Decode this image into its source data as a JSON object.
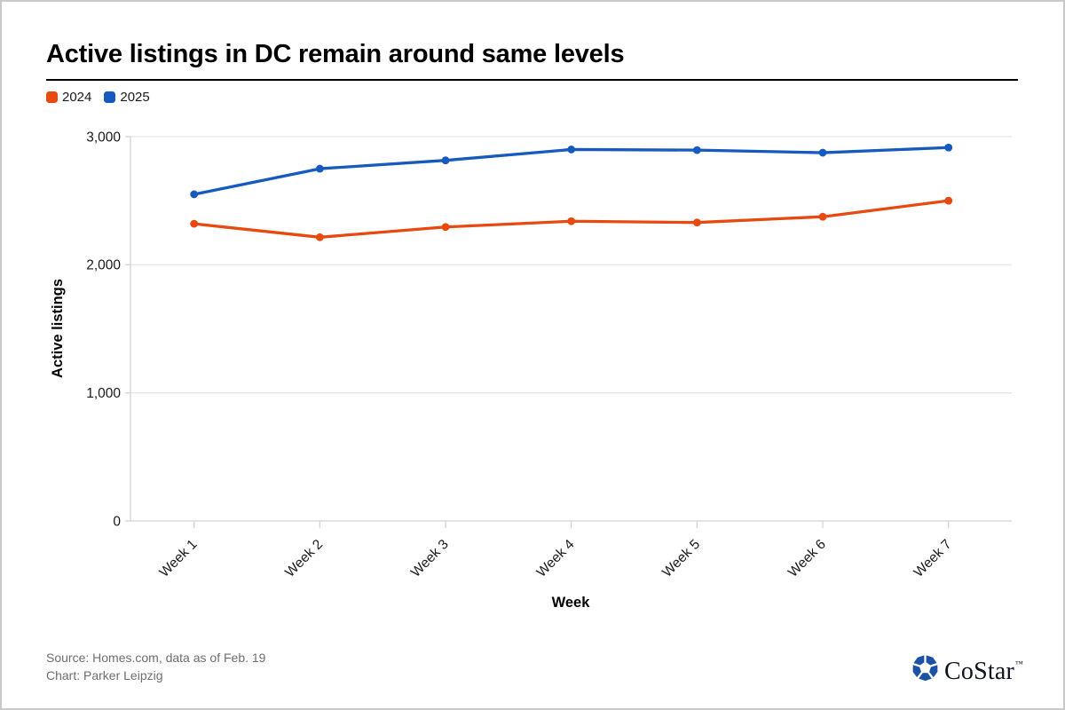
{
  "header": {
    "title": "Active listings in DC remain around same levels"
  },
  "chart_data": {
    "type": "line",
    "title": "Active listings in DC remain around same levels",
    "categories": [
      "Week 1",
      "Week 2",
      "Week 3",
      "Week 4",
      "Week 5",
      "Week 6",
      "Week 7"
    ],
    "series": [
      {
        "name": "2024",
        "color": "#e8490f",
        "values": [
          2320,
          2215,
          2295,
          2340,
          2330,
          2375,
          2500
        ]
      },
      {
        "name": "2025",
        "color": "#1659bf",
        "values": [
          2550,
          2750,
          2815,
          2900,
          2895,
          2875,
          2915
        ]
      }
    ],
    "xlabel": "Week",
    "ylabel": "Active listings",
    "ylim": [
      0,
      3000
    ],
    "yticks": [
      0,
      1000,
      2000,
      3000
    ],
    "ytick_labels": [
      "0",
      "1,000",
      "2,000",
      "3,000"
    ],
    "grid": true,
    "legend_position": "top-left",
    "x_label_rotation": -45
  },
  "footer": {
    "source": "Source: Homes.com, data as of Feb. 19",
    "credit": "Chart: Parker Leipzig",
    "brand": {
      "name": "CoStar",
      "trademark": "™",
      "color": "#1b52a8"
    }
  }
}
